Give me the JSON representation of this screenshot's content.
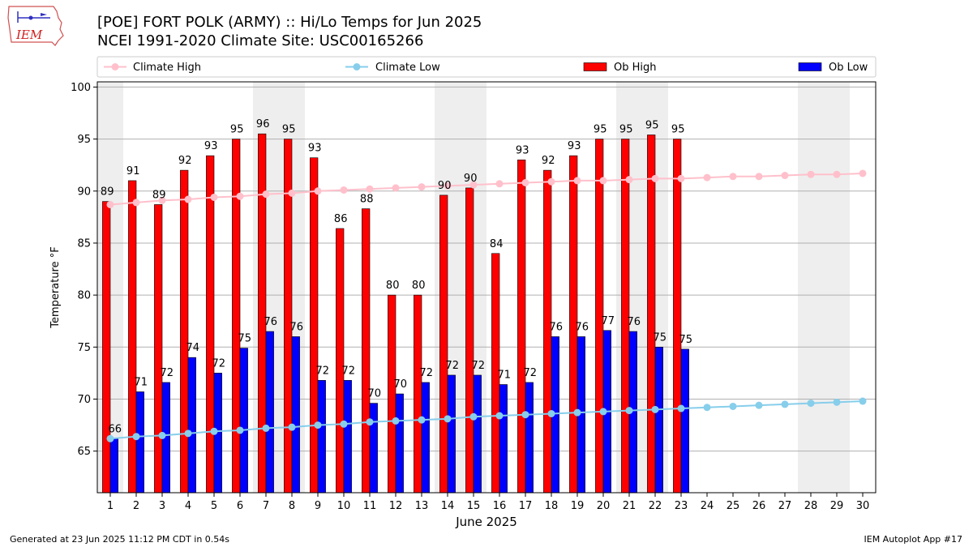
{
  "header": {
    "title_line1": "[POE] FORT POLK (ARMY) :: Hi/Lo Temps for Jun 2025",
    "title_line2": "NCEI 1991-2020 Climate Site: USC00165266",
    "logo_text": "IEM"
  },
  "footer": {
    "left": "Generated at 23 Jun 2025 11:12 PM CDT in 0.54s",
    "right": "IEM Autoplot App #17"
  },
  "chart_data": {
    "type": "bar",
    "xlabel": "June 2025",
    "ylabel": "Temperature °F",
    "ylim": [
      61,
      100.5
    ],
    "yticks": [
      65,
      70,
      75,
      80,
      85,
      90,
      95,
      100
    ],
    "days": [
      1,
      2,
      3,
      4,
      5,
      6,
      7,
      8,
      9,
      10,
      11,
      12,
      13,
      14,
      15,
      16,
      17,
      18,
      19,
      20,
      21,
      22,
      23,
      24,
      25,
      26,
      27,
      28,
      29,
      30
    ],
    "weekend_days": [
      1,
      7,
      8,
      14,
      15,
      21,
      22,
      28,
      29
    ],
    "grid": true,
    "legend_position": "top",
    "series": [
      {
        "name": "Climate High",
        "kind": "line",
        "color": "#ffc0cb",
        "values": [
          88.7,
          88.9,
          89.1,
          89.2,
          89.4,
          89.5,
          89.7,
          89.8,
          90.0,
          90.1,
          90.2,
          90.3,
          90.4,
          90.5,
          90.6,
          90.7,
          90.8,
          90.9,
          91.0,
          91.0,
          91.1,
          91.2,
          91.2,
          91.3,
          91.4,
          91.4,
          91.5,
          91.6,
          91.6,
          91.7
        ]
      },
      {
        "name": "Climate Low",
        "kind": "line",
        "color": "#87ceeb",
        "values": [
          66.2,
          66.4,
          66.5,
          66.7,
          66.9,
          67.0,
          67.2,
          67.3,
          67.5,
          67.6,
          67.8,
          67.9,
          68.0,
          68.1,
          68.3,
          68.4,
          68.5,
          68.6,
          68.7,
          68.8,
          68.9,
          69.0,
          69.1,
          69.2,
          69.3,
          69.4,
          69.5,
          69.6,
          69.7,
          69.8
        ]
      },
      {
        "name": "Ob High",
        "kind": "bar",
        "color": "#ff0000",
        "values": [
          89,
          91,
          88.7,
          92,
          93.4,
          95,
          95.5,
          95,
          93.2,
          86.4,
          88.3,
          80,
          80,
          89.6,
          90.3,
          84,
          93,
          92,
          93.4,
          95,
          95,
          95.4,
          95
        ],
        "labels": [
          "89",
          "91",
          "89",
          "92",
          "93",
          "95",
          "96",
          "95",
          "93",
          "86",
          "88",
          "80",
          "80",
          "90",
          "90",
          "84",
          "93",
          "92",
          "93",
          "95",
          "95",
          "95",
          "95"
        ]
      },
      {
        "name": "Ob Low",
        "kind": "bar",
        "color": "#0000ff",
        "values": [
          66.2,
          70.7,
          71.6,
          74,
          72.5,
          74.9,
          76.5,
          76,
          71.8,
          71.8,
          69.6,
          70.5,
          71.6,
          72.3,
          72.3,
          71.4,
          71.6,
          76,
          76,
          76.6,
          76.5,
          75,
          74.8
        ],
        "labels": [
          "66",
          "71",
          "72",
          "74",
          "72",
          "75",
          "76",
          "76",
          "72",
          "72",
          "70",
          "70",
          "72",
          "72",
          "72",
          "71",
          "72",
          "76",
          "76",
          "77",
          "76",
          "75",
          "75"
        ]
      }
    ]
  }
}
